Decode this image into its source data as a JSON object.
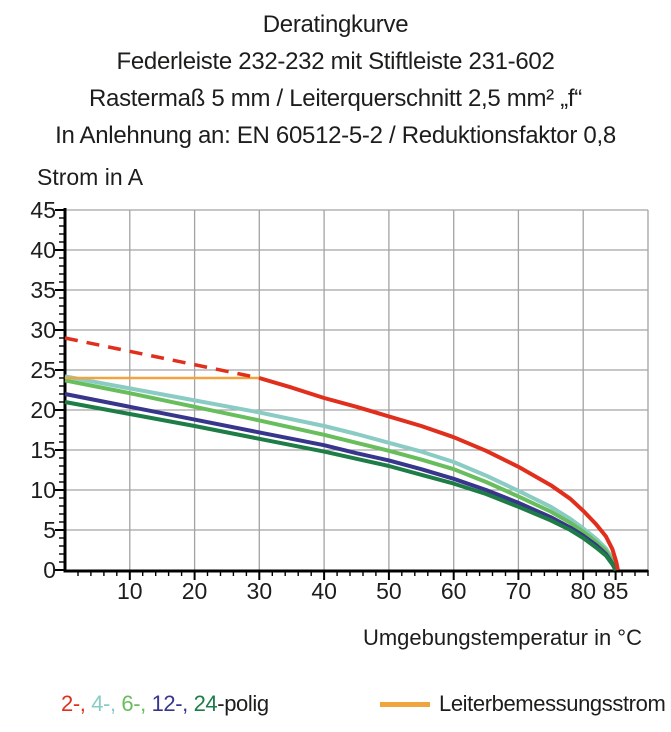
{
  "header": {
    "lines": [
      "Deratingkurve",
      "Federleiste 232-232 mit Stiftleiste 231-602",
      "Rastermaß 5 mm / Leiterquerschnitt 2,5 mm² „f“",
      "In Anlehnung an: EN 60512-5-2 / Reduktionsfaktor 0,8"
    ]
  },
  "chart_data": {
    "type": "line",
    "title": "Deratingkurve",
    "xlabel": "Umgebungstemperatur in °C",
    "ylabel": "Strom in A",
    "xlim": [
      0,
      90
    ],
    "ylim": [
      0,
      45
    ],
    "x_gridlines": [
      10,
      20,
      30,
      40,
      50,
      60,
      70,
      80,
      90
    ],
    "y_gridlines": [
      5,
      10,
      15,
      20,
      25,
      30,
      35,
      40,
      45
    ],
    "x_major_ticks": [
      10,
      20,
      30,
      40,
      50,
      60,
      70,
      80,
      85
    ],
    "y_major_ticks": [
      0,
      5,
      10,
      15,
      20,
      25,
      30,
      35,
      40,
      45
    ],
    "x_minor_step": 2,
    "y_minor_step": 1,
    "grid": true,
    "grid_color": "#a3a3a3",
    "axis_color": "#000000",
    "legend_position": "bottom",
    "series": [
      {
        "name": "4-polig",
        "pole_count": 4,
        "color": "#8acbc4",
        "width": 4,
        "dashed": false,
        "points": [
          [
            0,
            24.2
          ],
          [
            10,
            22.7
          ],
          [
            20,
            21.2
          ],
          [
            30,
            19.7
          ],
          [
            40,
            18
          ],
          [
            45,
            17
          ],
          [
            50,
            15.9
          ],
          [
            55,
            14.8
          ],
          [
            60,
            13.5
          ],
          [
            65,
            11.8
          ],
          [
            70,
            9.9
          ],
          [
            75,
            7.9
          ],
          [
            78,
            6.4
          ],
          [
            80,
            5.2
          ],
          [
            82,
            3.9
          ],
          [
            83.5,
            2.7
          ],
          [
            84.6,
            1.3
          ],
          [
            85.1,
            0
          ]
        ]
      },
      {
        "name": "6-polig",
        "pole_count": 6,
        "color": "#68bd5c",
        "width": 4,
        "dashed": false,
        "points": [
          [
            0,
            23.7
          ],
          [
            10,
            22.1
          ],
          [
            20,
            20.4
          ],
          [
            30,
            18.7
          ],
          [
            40,
            16.9
          ],
          [
            45,
            15.9
          ],
          [
            50,
            14.9
          ],
          [
            55,
            13.8
          ],
          [
            60,
            12.6
          ],
          [
            65,
            11
          ],
          [
            70,
            9.2
          ],
          [
            75,
            7.3
          ],
          [
            78,
            5.9
          ],
          [
            80,
            4.8
          ],
          [
            82,
            3.5
          ],
          [
            83.5,
            2.4
          ],
          [
            84.6,
            1
          ],
          [
            85.1,
            0
          ]
        ]
      },
      {
        "name": "12-polig",
        "pole_count": 12,
        "color": "#37368c",
        "width": 4,
        "dashed": false,
        "points": [
          [
            0,
            22
          ],
          [
            10,
            20.4
          ],
          [
            20,
            18.8
          ],
          [
            30,
            17.2
          ],
          [
            40,
            15.6
          ],
          [
            45,
            14.6
          ],
          [
            50,
            13.7
          ],
          [
            55,
            12.6
          ],
          [
            60,
            11.4
          ],
          [
            65,
            10
          ],
          [
            70,
            8.4
          ],
          [
            75,
            6.6
          ],
          [
            78,
            5.3
          ],
          [
            80,
            4.3
          ],
          [
            82,
            3.1
          ],
          [
            83.5,
            2
          ],
          [
            84.5,
            0.8
          ],
          [
            85,
            0
          ]
        ]
      },
      {
        "name": "24-polig",
        "pole_count": 24,
        "color": "#1e7c47",
        "width": 4,
        "dashed": false,
        "points": [
          [
            0,
            21
          ],
          [
            10,
            19.5
          ],
          [
            20,
            18
          ],
          [
            30,
            16.4
          ],
          [
            40,
            14.8
          ],
          [
            45,
            13.9
          ],
          [
            50,
            13
          ],
          [
            55,
            11.9
          ],
          [
            60,
            10.8
          ],
          [
            65,
            9.5
          ],
          [
            70,
            7.9
          ],
          [
            75,
            6.2
          ],
          [
            78,
            5
          ],
          [
            80,
            4
          ],
          [
            82,
            2.8
          ],
          [
            83.5,
            1.8
          ],
          [
            84.5,
            0.7
          ],
          [
            85,
            0
          ]
        ]
      },
      {
        "name": "Leiterbemessungsstrom",
        "color": "#f0a43b",
        "width": 2.5,
        "dashed": false,
        "points": [
          [
            0,
            24
          ],
          [
            30,
            24
          ]
        ]
      },
      {
        "name": "2-polig gestrichelt",
        "pole_count": 2,
        "color": "#e0301d",
        "width": 3.5,
        "dashed": true,
        "points": [
          [
            0,
            29
          ],
          [
            30,
            24
          ]
        ]
      },
      {
        "name": "2-polig",
        "pole_count": 2,
        "color": "#e0301d",
        "width": 4,
        "dashed": false,
        "points": [
          [
            30,
            24
          ],
          [
            35,
            22.8
          ],
          [
            40,
            21.5
          ],
          [
            45,
            20.4
          ],
          [
            50,
            19.2
          ],
          [
            55,
            18
          ],
          [
            60,
            16.6
          ],
          [
            65,
            14.9
          ],
          [
            70,
            12.9
          ],
          [
            75,
            10.6
          ],
          [
            78,
            8.9
          ],
          [
            80,
            7.4
          ],
          [
            82,
            5.7
          ],
          [
            83.5,
            4.2
          ],
          [
            84.5,
            2.6
          ],
          [
            85.1,
            1
          ],
          [
            85.35,
            0
          ]
        ]
      }
    ]
  },
  "legend": {
    "pole_segments": [
      {
        "text": "2-, ",
        "color": "#e0301d"
      },
      {
        "text": "4-, ",
        "color": "#8acbc4"
      },
      {
        "text": "6-, ",
        "color": "#68bd5c"
      },
      {
        "text": "12-, ",
        "color": "#37368c"
      },
      {
        "text": "24",
        "color": "#1e7c47"
      },
      {
        "text": "-polig",
        "color": "#1d1d1b"
      }
    ],
    "rated_current_label": "Leiterbemessungsstrom",
    "rated_current_color": "#f0a43b"
  }
}
